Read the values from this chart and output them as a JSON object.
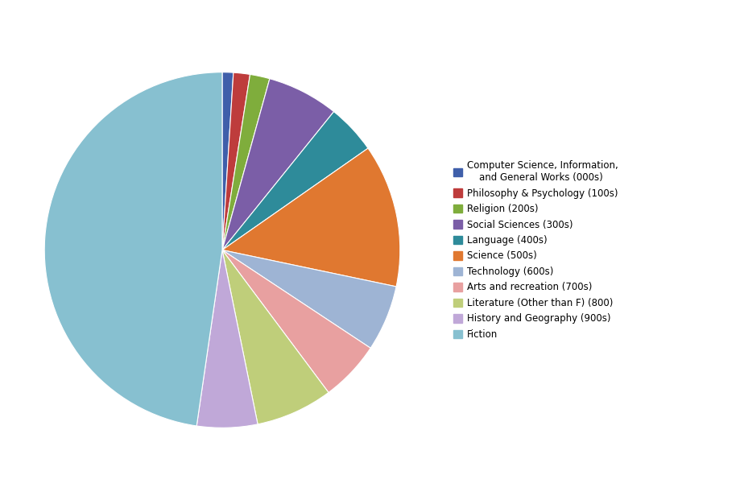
{
  "legend_labels": [
    "Computer Science, Information,\n    and General Works (000s)",
    "Philosophy & Psychology (100s)",
    "Religion (200s)",
    "Social Sciences (300s)",
    "Language (400s)",
    "Science (500s)",
    "Technology (600s)",
    "Arts and recreation (700s)",
    "Literature (Other than F) (800)",
    "History and Geography (900s)",
    "Fiction"
  ],
  "values": [
    1.0,
    1.5,
    1.8,
    6.5,
    4.5,
    13.0,
    6.0,
    5.5,
    7.0,
    5.5,
    47.7
  ],
  "colors": [
    "#3F5FAA",
    "#BE3C3C",
    "#7FAD3C",
    "#7B5EA7",
    "#2E8B9A",
    "#E07830",
    "#9EB4D4",
    "#E8A0A0",
    "#BFCE7A",
    "#C0A8D8",
    "#87C0D0"
  ],
  "figsize": [
    9.2,
    6.21
  ],
  "dpi": 100
}
